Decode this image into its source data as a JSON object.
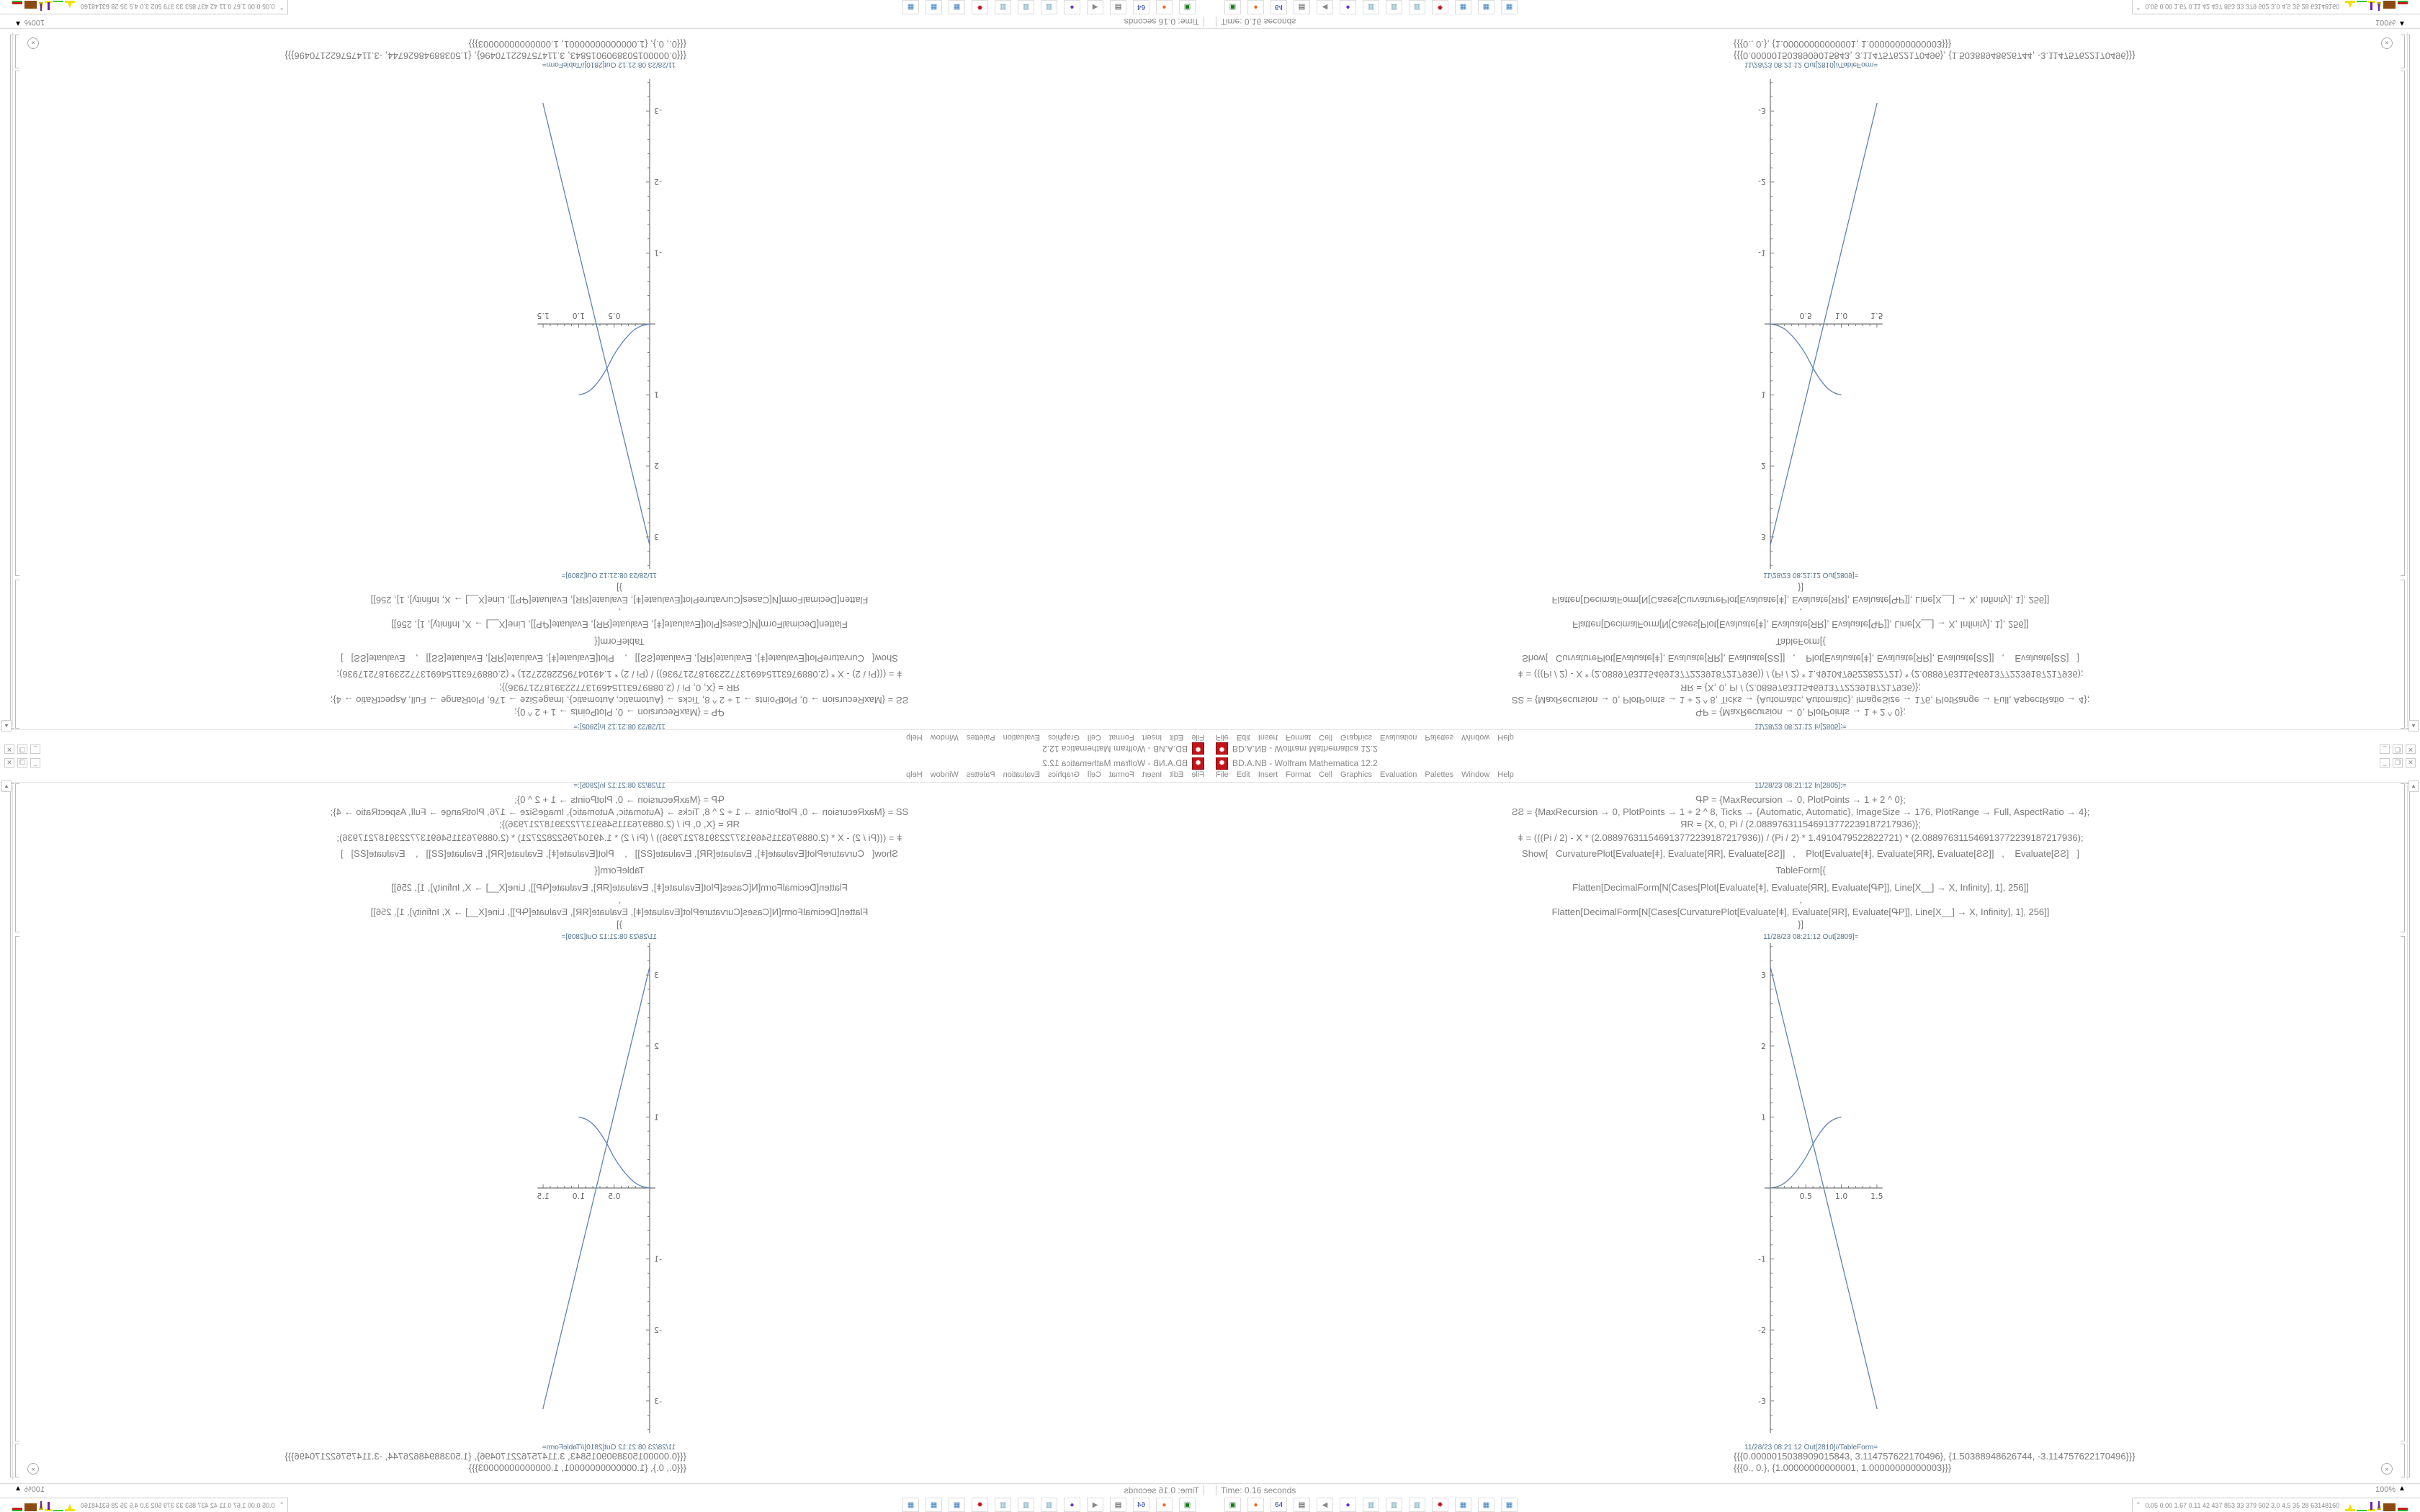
{
  "window": {
    "title": "BD.A.NB - Wolfram Mathematica 12.2",
    "buttons": {
      "minimize": "_",
      "restore": "❐",
      "close": "✕"
    }
  },
  "menu": [
    "File",
    "Edit",
    "Insert",
    "Format",
    "Cell",
    "Graphics",
    "Evaluation",
    "Palettes",
    "Window",
    "Help"
  ],
  "cell_input": {
    "label": "11/28/23 08:21:12 In[2805]:=",
    "lines": [
      "ԳP = {MaxRecursion → 0, PlotPoints → 1 + 2 ^ 0};",
      "ƧƧ = {MaxRecursion → 0, PlotPoints → 1 + 2 ^ 8, Ticks → {Automatic, Automatic}, ImageSize → 176, PlotRange → Full, AspectRatio → 4};",
      "ЯR = {X, 0, Pi / (2.088976311546913772239187217936)};",
      "ǂ = (((Pi / 2) - X * (2.088976311546913772239187217936)) / (Pi / 2) * 1.4910479522822721) * (2.088976311546913772239187217936);",
      "Show[   CurvaturePlot[Evaluate[ǂ], Evaluate[ЯR], Evaluate[ƧƧ]]   ,    Plot[Evaluate[ǂ], Evaluate[ЯR], Evaluate[ƧƧ]]   ,    Evaluate[ƧƧ]   ]",
      "TableForm[{",
      "Flatten[DecimalForm[N[Cases[Plot[Evaluate[ǂ], Evaluate[ЯR], Evaluate[ԳP]], Line[X__] → X, Infinity], 1], 256]]",
      ",",
      "Flatten[DecimalForm[N[Cases[CurvaturePlot[Evaluate[ǂ], Evaluate[ЯR], Evaluate[ԳP]], Line[X__] → X, Infinity], 1], 256]]",
      "}]"
    ]
  },
  "plot_output": {
    "label": "11/28/23 08:21:12 Out[2809]="
  },
  "table_output": {
    "label": "11/28/23 08:21:12 Out[2810]//TableForm=",
    "rows": [
      "{{{0.0000015038909015843, 3.114757622170496}, {1.50388948626744, -3.114757622170496}}}",
      "{{{0., 0.}, {1.00000000000001, 1.00000000000003}}}"
    ]
  },
  "status": {
    "time": "Time: 0.16 seconds",
    "zoom": "100%"
  },
  "taskbar": {
    "icons": [
      {
        "name": "terminal-icon",
        "glyph": "▣",
        "color": "#1a7a1a"
      },
      {
        "name": "firefox-icon",
        "glyph": "●",
        "color": "#e8691f"
      },
      {
        "name": "floppy-64-icon",
        "glyph": "64",
        "color": "#1f3f9a"
      },
      {
        "name": "system-monitor-icon",
        "glyph": "▤",
        "color": "#3a3a3a"
      },
      {
        "name": "speaker-icon",
        "glyph": "◀",
        "color": "#888888"
      },
      {
        "name": "mastodon-icon",
        "glyph": "●",
        "color": "#6a2fc8"
      },
      {
        "name": "notepad-icon",
        "glyph": "▥",
        "color": "#5a9ab0"
      },
      {
        "name": "notepad-icon",
        "glyph": "▥",
        "color": "#5a9ab0"
      },
      {
        "name": "notepad-icon",
        "glyph": "▥",
        "color": "#5a9ab0"
      },
      {
        "name": "mathematica-icon",
        "glyph": "✹",
        "color": "#c0141a"
      },
      {
        "name": "calculator-icon",
        "glyph": "▦",
        "color": "#3b7fc0"
      },
      {
        "name": "calculator-icon",
        "glyph": "▦",
        "color": "#3b7fc0"
      },
      {
        "name": "calculator-icon",
        "glyph": "▦",
        "color": "#3b7fc0"
      }
    ]
  },
  "tray": {
    "stats": "0.05 0.00 1.67 0.11  42  437  853  33  379  502  3.0  4.5  35  28 63148160"
  },
  "colors": {
    "accent": "#c0141a",
    "plot_line": "#5e81b5",
    "timestamp": "#4f7190"
  },
  "chart_data": {
    "type": "line",
    "xlim": [
      0,
      1.5
    ],
    "ylim": [
      -3.3,
      3.3
    ],
    "xticks": [
      "0.5",
      "1.0",
      "1.5"
    ],
    "yticks": [
      "-3",
      "-2",
      "-1",
      "1",
      "2",
      "3"
    ],
    "grid": false,
    "series": [
      {
        "x": [
          1.5038909015843e-06,
          1.50388948626744
        ],
        "y": [
          3.114757622170496,
          -3.114757622170496
        ]
      },
      {
        "x": [
          0,
          0.1,
          0.2,
          0.3,
          0.4,
          0.5,
          0.6,
          0.7,
          0.8,
          0.9,
          1.0
        ],
        "y": [
          0,
          0.02,
          0.07,
          0.16,
          0.28,
          0.43,
          0.62,
          0.78,
          0.9,
          0.97,
          1.0
        ]
      }
    ]
  }
}
